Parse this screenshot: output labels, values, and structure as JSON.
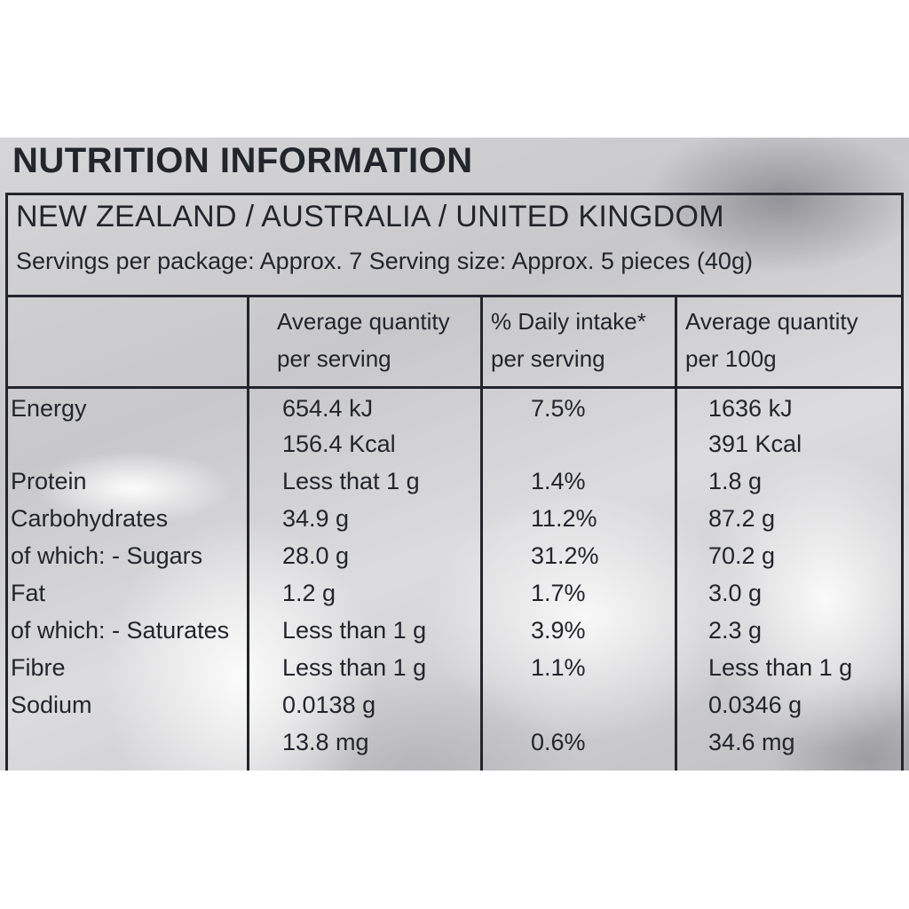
{
  "label": {
    "title": "NUTRITION INFORMATION",
    "region": "NEW ZEALAND / AUSTRALIA / UNITED KINGDOM",
    "servings": "Servings per package:  Approx. 7  Serving size: Approx. 5 pieces (40g)",
    "headers": {
      "per_serving_line1": "Average quantity",
      "per_serving_line2": "per serving",
      "daily_intake_line1": "% Daily intake*",
      "daily_intake_line2": "per serving",
      "per_100g_line1": "Average quantity",
      "per_100g_line2": "per 100g"
    },
    "rows": [
      {
        "nutrient": "Energy",
        "per_serving": "654.4 kJ",
        "daily_intake": "7.5%",
        "per_100g": "1636 kJ"
      },
      {
        "nutrient": "",
        "per_serving": "156.4 Kcal",
        "daily_intake": "",
        "per_100g": "391 Kcal"
      },
      {
        "nutrient": "Protein",
        "per_serving": "Less that 1 g",
        "daily_intake": "1.4%",
        "per_100g": "1.8 g"
      },
      {
        "nutrient": "Carbohydrates",
        "per_serving": "34.9 g",
        "daily_intake": "11.2%",
        "per_100g": "87.2 g"
      },
      {
        "nutrient": "of which: - Sugars",
        "per_serving": "28.0 g",
        "daily_intake": "31.2%",
        "per_100g": "70.2 g"
      },
      {
        "nutrient": "Fat",
        "per_serving": "1.2 g",
        "daily_intake": "1.7%",
        "per_100g": "3.0 g"
      },
      {
        "nutrient": "of which: - Saturates",
        "per_serving": "Less than 1 g",
        "daily_intake": "3.9%",
        "per_100g": "2.3 g"
      },
      {
        "nutrient": "Fibre",
        "per_serving": "Less than 1 g",
        "daily_intake": "1.1%",
        "per_100g": "Less than 1 g"
      },
      {
        "nutrient": "Sodium",
        "per_serving": "0.0138 g",
        "daily_intake": "",
        "per_100g": "0.0346 g"
      },
      {
        "nutrient": "",
        "per_serving": "13.8 mg",
        "daily_intake": "0.6%",
        "per_100g": "34.6 mg"
      }
    ]
  }
}
